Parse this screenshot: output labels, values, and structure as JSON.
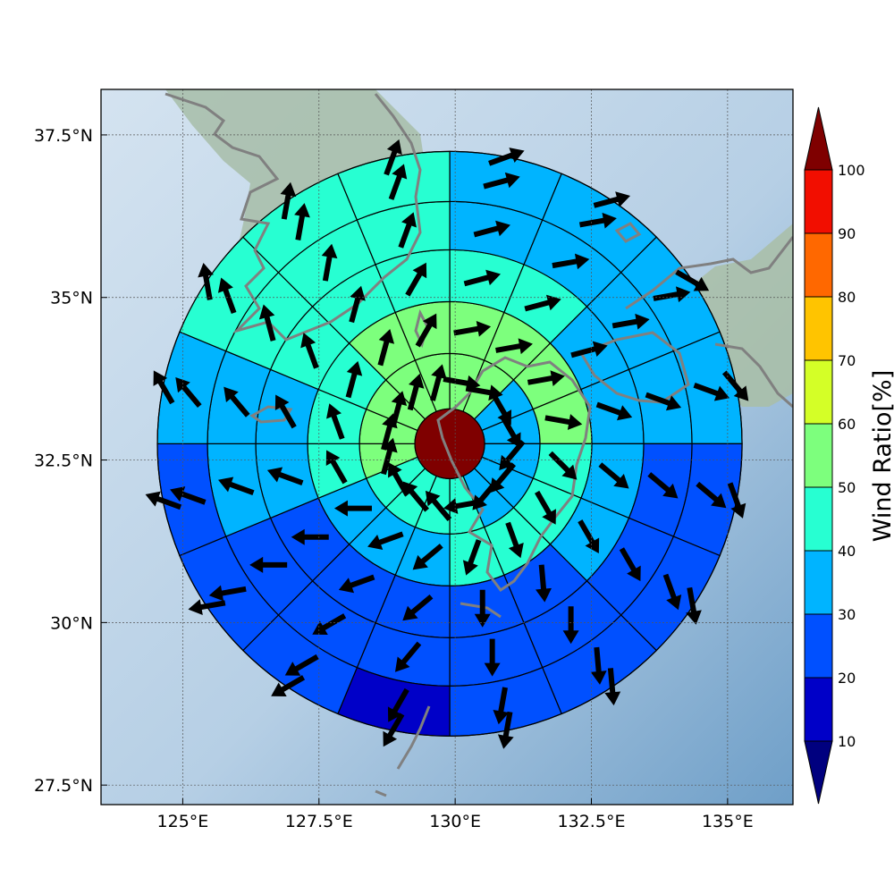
{
  "chart_data": {
    "type": "heatmap",
    "title": "",
    "projection": "lon-lat map with polar-sector overlay",
    "x_axis": {
      "ticks": [
        125,
        127.5,
        130,
        132.5,
        135
      ],
      "tick_labels": [
        "125°E",
        "127.5°E",
        "130°E",
        "132.5°E",
        "135°E"
      ]
    },
    "y_axis": {
      "ticks": [
        27.5,
        30,
        32.5,
        35,
        37.5
      ],
      "tick_labels": [
        "27.5°N",
        "30°N",
        "32.5°N",
        "35°N",
        "37.5°N"
      ]
    },
    "lon_range": [
      123.5,
      136.2
    ],
    "lat_range": [
      27.2,
      38.2
    ],
    "grid": true,
    "center": {
      "lon": 129.9,
      "lat": 32.75,
      "wind_ratio": 100
    },
    "rings": 6,
    "sectors_per_ring": 16,
    "sector_order": "clockwise from north, starting at 0°",
    "wind_ratio": [
      [
        58,
        58,
        36,
        36,
        36,
        36,
        36,
        46,
        46,
        46,
        46,
        54,
        54,
        54,
        54,
        58
      ],
      [
        55,
        55,
        55,
        55,
        46,
        46,
        46,
        46,
        36,
        36,
        36,
        46,
        46,
        46,
        55,
        55
      ],
      [
        46,
        46,
        36,
        36,
        36,
        36,
        25,
        25,
        25,
        25,
        25,
        36,
        36,
        46,
        46,
        46
      ],
      [
        36,
        36,
        36,
        36,
        25,
        25,
        25,
        25,
        25,
        25,
        25,
        36,
        36,
        46,
        46,
        46
      ],
      [
        36,
        36,
        36,
        36,
        25,
        25,
        25,
        25,
        15,
        25,
        25,
        25,
        36,
        46,
        46,
        46
      ],
      [
        36,
        25,
        25,
        36,
        36,
        25,
        25,
        15,
        15,
        15,
        25,
        25,
        25,
        36,
        46,
        46
      ]
    ],
    "wind_direction_deg": [
      [
        100,
        100,
        150,
        150,
        220,
        220,
        220,
        260,
        320,
        320,
        330,
        15,
        15,
        15,
        15,
        15
      ],
      [
        80,
        80,
        80,
        100,
        135,
        150,
        160,
        200,
        230,
        250,
        270,
        330,
        340,
        15,
        15,
        30
      ],
      [
        75,
        75,
        75,
        110,
        130,
        150,
        175,
        180,
        230,
        250,
        270,
        290,
        330,
        340,
        15,
        30
      ],
      [
        75,
        80,
        80,
        110,
        130,
        150,
        180,
        180,
        220,
        240,
        270,
        290,
        320,
        345,
        10,
        20
      ],
      [
        75,
        80,
        80,
        110,
        130,
        160,
        175,
        190,
        210,
        240,
        260,
        290,
        320,
        340,
        10,
        20
      ],
      [
        70,
        75,
        120,
        140,
        160,
        170,
        175,
        190,
        210,
        240,
        260,
        290,
        330,
        350,
        10,
        20
      ]
    ],
    "colorbar": {
      "label": "Wind Ratio[%]",
      "levels": [
        10,
        20,
        30,
        40,
        50,
        60,
        70,
        80,
        90,
        100
      ],
      "tick_labels": [
        "10",
        "20",
        "30",
        "40",
        "50",
        "60",
        "70",
        "80",
        "90",
        "100"
      ],
      "colors": [
        "#0000c8",
        "#0050ff",
        "#00b4ff",
        "#27ffd2",
        "#7dff7d",
        "#d4ff27",
        "#ffc400",
        "#ff6800",
        "#f20e00"
      ],
      "under_color": "#00007f",
      "over_color": "#7f0000",
      "extend": "both"
    }
  },
  "style": {
    "sector_edge": "#000000",
    "coastline": "#808080",
    "arrow": "#000000",
    "sea": "#b8d1e6",
    "land": "#9fb8a4"
  }
}
